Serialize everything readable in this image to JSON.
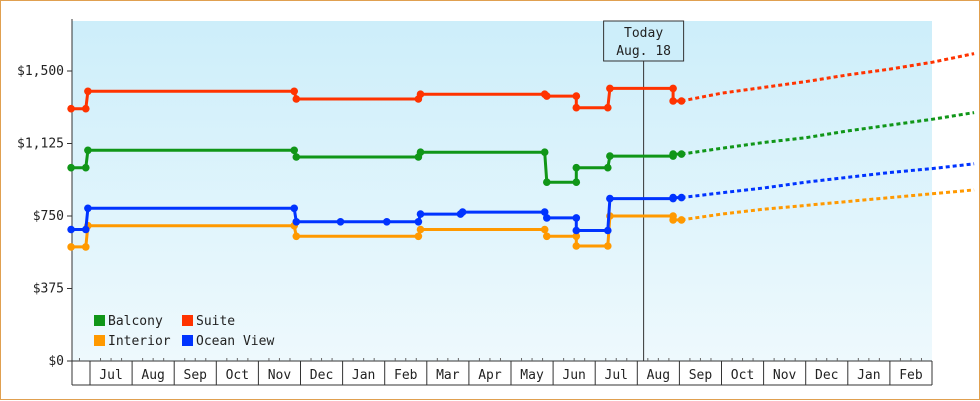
{
  "chart_data": {
    "type": "line",
    "x_categories": [
      "Jul",
      "Aug",
      "Sep",
      "Oct",
      "Nov",
      "Dec",
      "Jan",
      "Feb",
      "Mar",
      "Apr",
      "May",
      "Jun",
      "Jul",
      "Aug",
      "Sep",
      "Oct",
      "Nov",
      "Dec",
      "Jan",
      "Feb"
    ],
    "y_ticks": [
      "$0",
      "$375",
      "$750",
      "$1,125",
      "$1,500"
    ],
    "ylim": [
      0,
      1500
    ],
    "grid": false,
    "legend_position": "bottom-left",
    "annotation": {
      "line1": "Today",
      "line2": "Aug. 18",
      "x": 13.15
    },
    "series": [
      {
        "name": "Balcony",
        "color": "#109618",
        "points": [
          [
            -0.45,
            1000
          ],
          [
            -0.1,
            1000
          ],
          [
            -0.05,
            1090
          ],
          [
            4.85,
            1090
          ],
          [
            4.9,
            1055
          ],
          [
            7.8,
            1055
          ],
          [
            7.85,
            1080
          ],
          [
            10.8,
            1080
          ],
          [
            10.85,
            925
          ],
          [
            11.55,
            925
          ],
          [
            11.55,
            1000
          ],
          [
            12.3,
            1000
          ],
          [
            12.35,
            1060
          ],
          [
            13.85,
            1060
          ],
          [
            13.85,
            1070
          ],
          [
            14.05,
            1070
          ]
        ],
        "forecast": [
          [
            14.05,
            1070
          ],
          [
            15,
            1100
          ],
          [
            16,
            1130
          ],
          [
            17,
            1155
          ],
          [
            18,
            1190
          ],
          [
            19,
            1220
          ],
          [
            20,
            1250
          ],
          [
            21,
            1285
          ]
        ]
      },
      {
        "name": "Suite",
        "color": "#ff3300",
        "points": [
          [
            -0.45,
            1305
          ],
          [
            -0.1,
            1305
          ],
          [
            -0.05,
            1395
          ],
          [
            4.85,
            1395
          ],
          [
            4.9,
            1355
          ],
          [
            7.8,
            1355
          ],
          [
            7.85,
            1380
          ],
          [
            10.8,
            1380
          ],
          [
            10.85,
            1370
          ],
          [
            11.55,
            1370
          ],
          [
            11.55,
            1310
          ],
          [
            12.3,
            1310
          ],
          [
            12.35,
            1410
          ],
          [
            13.85,
            1410
          ],
          [
            13.85,
            1345
          ],
          [
            14.05,
            1345
          ]
        ],
        "forecast": [
          [
            14.05,
            1345
          ],
          [
            15,
            1385
          ],
          [
            16,
            1415
          ],
          [
            17,
            1445
          ],
          [
            18,
            1480
          ],
          [
            19,
            1510
          ],
          [
            20,
            1545
          ],
          [
            21,
            1590
          ]
        ]
      },
      {
        "name": "Interior",
        "color": "#ff9900",
        "points": [
          [
            -0.45,
            590
          ],
          [
            -0.1,
            590
          ],
          [
            -0.05,
            700
          ],
          [
            4.85,
            700
          ],
          [
            4.9,
            645
          ],
          [
            7.8,
            645
          ],
          [
            7.85,
            680
          ],
          [
            10.8,
            680
          ],
          [
            10.85,
            645
          ],
          [
            11.55,
            645
          ],
          [
            11.55,
            595
          ],
          [
            12.3,
            595
          ],
          [
            12.35,
            750
          ],
          [
            13.85,
            750
          ],
          [
            13.85,
            730
          ],
          [
            14.05,
            730
          ]
        ],
        "forecast": [
          [
            14.05,
            730
          ],
          [
            15,
            760
          ],
          [
            16,
            785
          ],
          [
            17,
            805
          ],
          [
            18,
            825
          ],
          [
            19,
            845
          ],
          [
            20,
            865
          ],
          [
            21,
            885
          ]
        ]
      },
      {
        "name": "Ocean View",
        "color": "#0033ff",
        "points": [
          [
            -0.45,
            680
          ],
          [
            -0.1,
            680
          ],
          [
            -0.05,
            790
          ],
          [
            4.85,
            790
          ],
          [
            4.9,
            720
          ],
          [
            5.95,
            720
          ],
          [
            7.05,
            720
          ],
          [
            7.8,
            720
          ],
          [
            7.85,
            760
          ],
          [
            8.8,
            760
          ],
          [
            8.85,
            770
          ],
          [
            10.8,
            770
          ],
          [
            10.85,
            740
          ],
          [
            11.55,
            740
          ],
          [
            11.55,
            675
          ],
          [
            12.3,
            675
          ],
          [
            12.35,
            840
          ],
          [
            13.85,
            840
          ],
          [
            13.85,
            845
          ],
          [
            14.05,
            845
          ]
        ],
        "forecast": [
          [
            14.05,
            845
          ],
          [
            15,
            870
          ],
          [
            16,
            895
          ],
          [
            17,
            925
          ],
          [
            18,
            950
          ],
          [
            19,
            975
          ],
          [
            20,
            995
          ],
          [
            21,
            1020
          ]
        ]
      }
    ]
  }
}
